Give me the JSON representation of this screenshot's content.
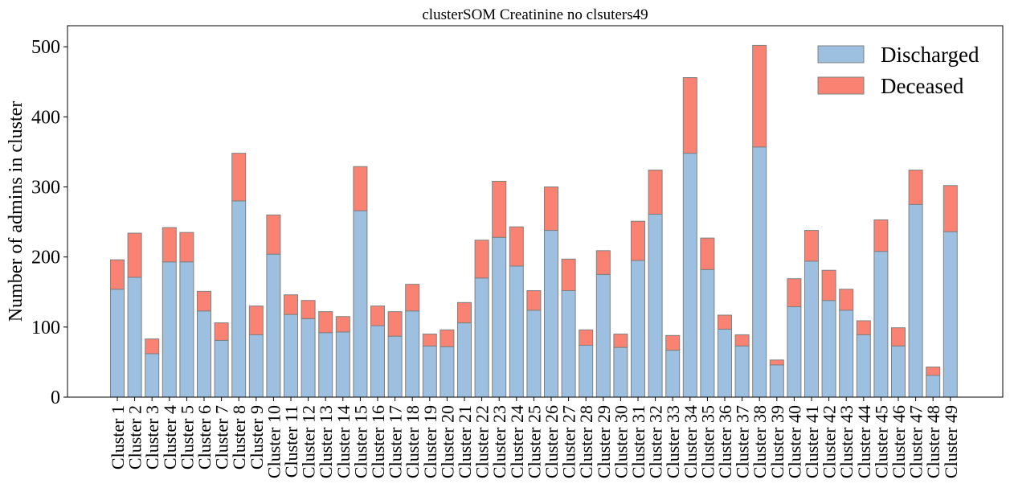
{
  "chart_data": {
    "type": "bar",
    "stacked": true,
    "title": "clusterSOM Creatinine no clsuters49",
    "xlabel": "",
    "ylabel": "Number of admins in cluster",
    "ylim": [
      0,
      530
    ],
    "yticks": [
      0,
      100,
      200,
      300,
      400,
      500
    ],
    "grid": false,
    "legend_position": "top-right",
    "categories": [
      "Cluster 1",
      "Cluster 2",
      "Cluster 3",
      "Cluster 4",
      "Cluster 5",
      "Cluster 6",
      "Cluster 7",
      "Cluster 8",
      "Cluster 9",
      "Cluster 10",
      "Cluster 11",
      "Cluster 12",
      "Cluster 13",
      "Cluster 14",
      "Cluster 15",
      "Cluster 16",
      "Cluster 17",
      "Cluster 18",
      "Cluster 19",
      "Cluster 20",
      "Cluster 21",
      "Cluster 22",
      "Cluster 23",
      "Cluster 24",
      "Cluster 25",
      "Cluster 26",
      "Cluster 27",
      "Cluster 28",
      "Cluster 29",
      "Cluster 30",
      "Cluster 31",
      "Cluster 32",
      "Cluster 33",
      "Cluster 34",
      "Cluster 35",
      "Cluster 36",
      "Cluster 37",
      "Cluster 38",
      "Cluster 39",
      "Cluster 40",
      "Cluster 41",
      "Cluster 42",
      "Cluster 43",
      "Cluster 44",
      "Cluster 45",
      "Cluster 46",
      "Cluster 47",
      "Cluster 48",
      "Cluster 49"
    ],
    "series": [
      {
        "name": "Discharged",
        "color": "#9dbfe0",
        "values": [
          154,
          171,
          62,
          193,
          193,
          123,
          81,
          280,
          89,
          204,
          118,
          112,
          92,
          93,
          266,
          102,
          87,
          123,
          73,
          72,
          106,
          170,
          228,
          187,
          124,
          238,
          152,
          74,
          175,
          71,
          195,
          261,
          67,
          348,
          182,
          97,
          73,
          357,
          46,
          129,
          194,
          138,
          124,
          89,
          208,
          73,
          275,
          31,
          236
        ]
      },
      {
        "name": "Deceased",
        "color": "#f98272",
        "values": [
          42,
          63,
          21,
          49,
          42,
          28,
          25,
          68,
          41,
          56,
          28,
          26,
          30,
          22,
          63,
          28,
          35,
          38,
          17,
          24,
          29,
          54,
          80,
          56,
          28,
          62,
          45,
          22,
          34,
          19,
          56,
          63,
          21,
          108,
          45,
          20,
          16,
          145,
          7,
          40,
          44,
          43,
          30,
          20,
          45,
          26,
          49,
          12,
          66
        ]
      }
    ],
    "edge_color": "#808080"
  }
}
